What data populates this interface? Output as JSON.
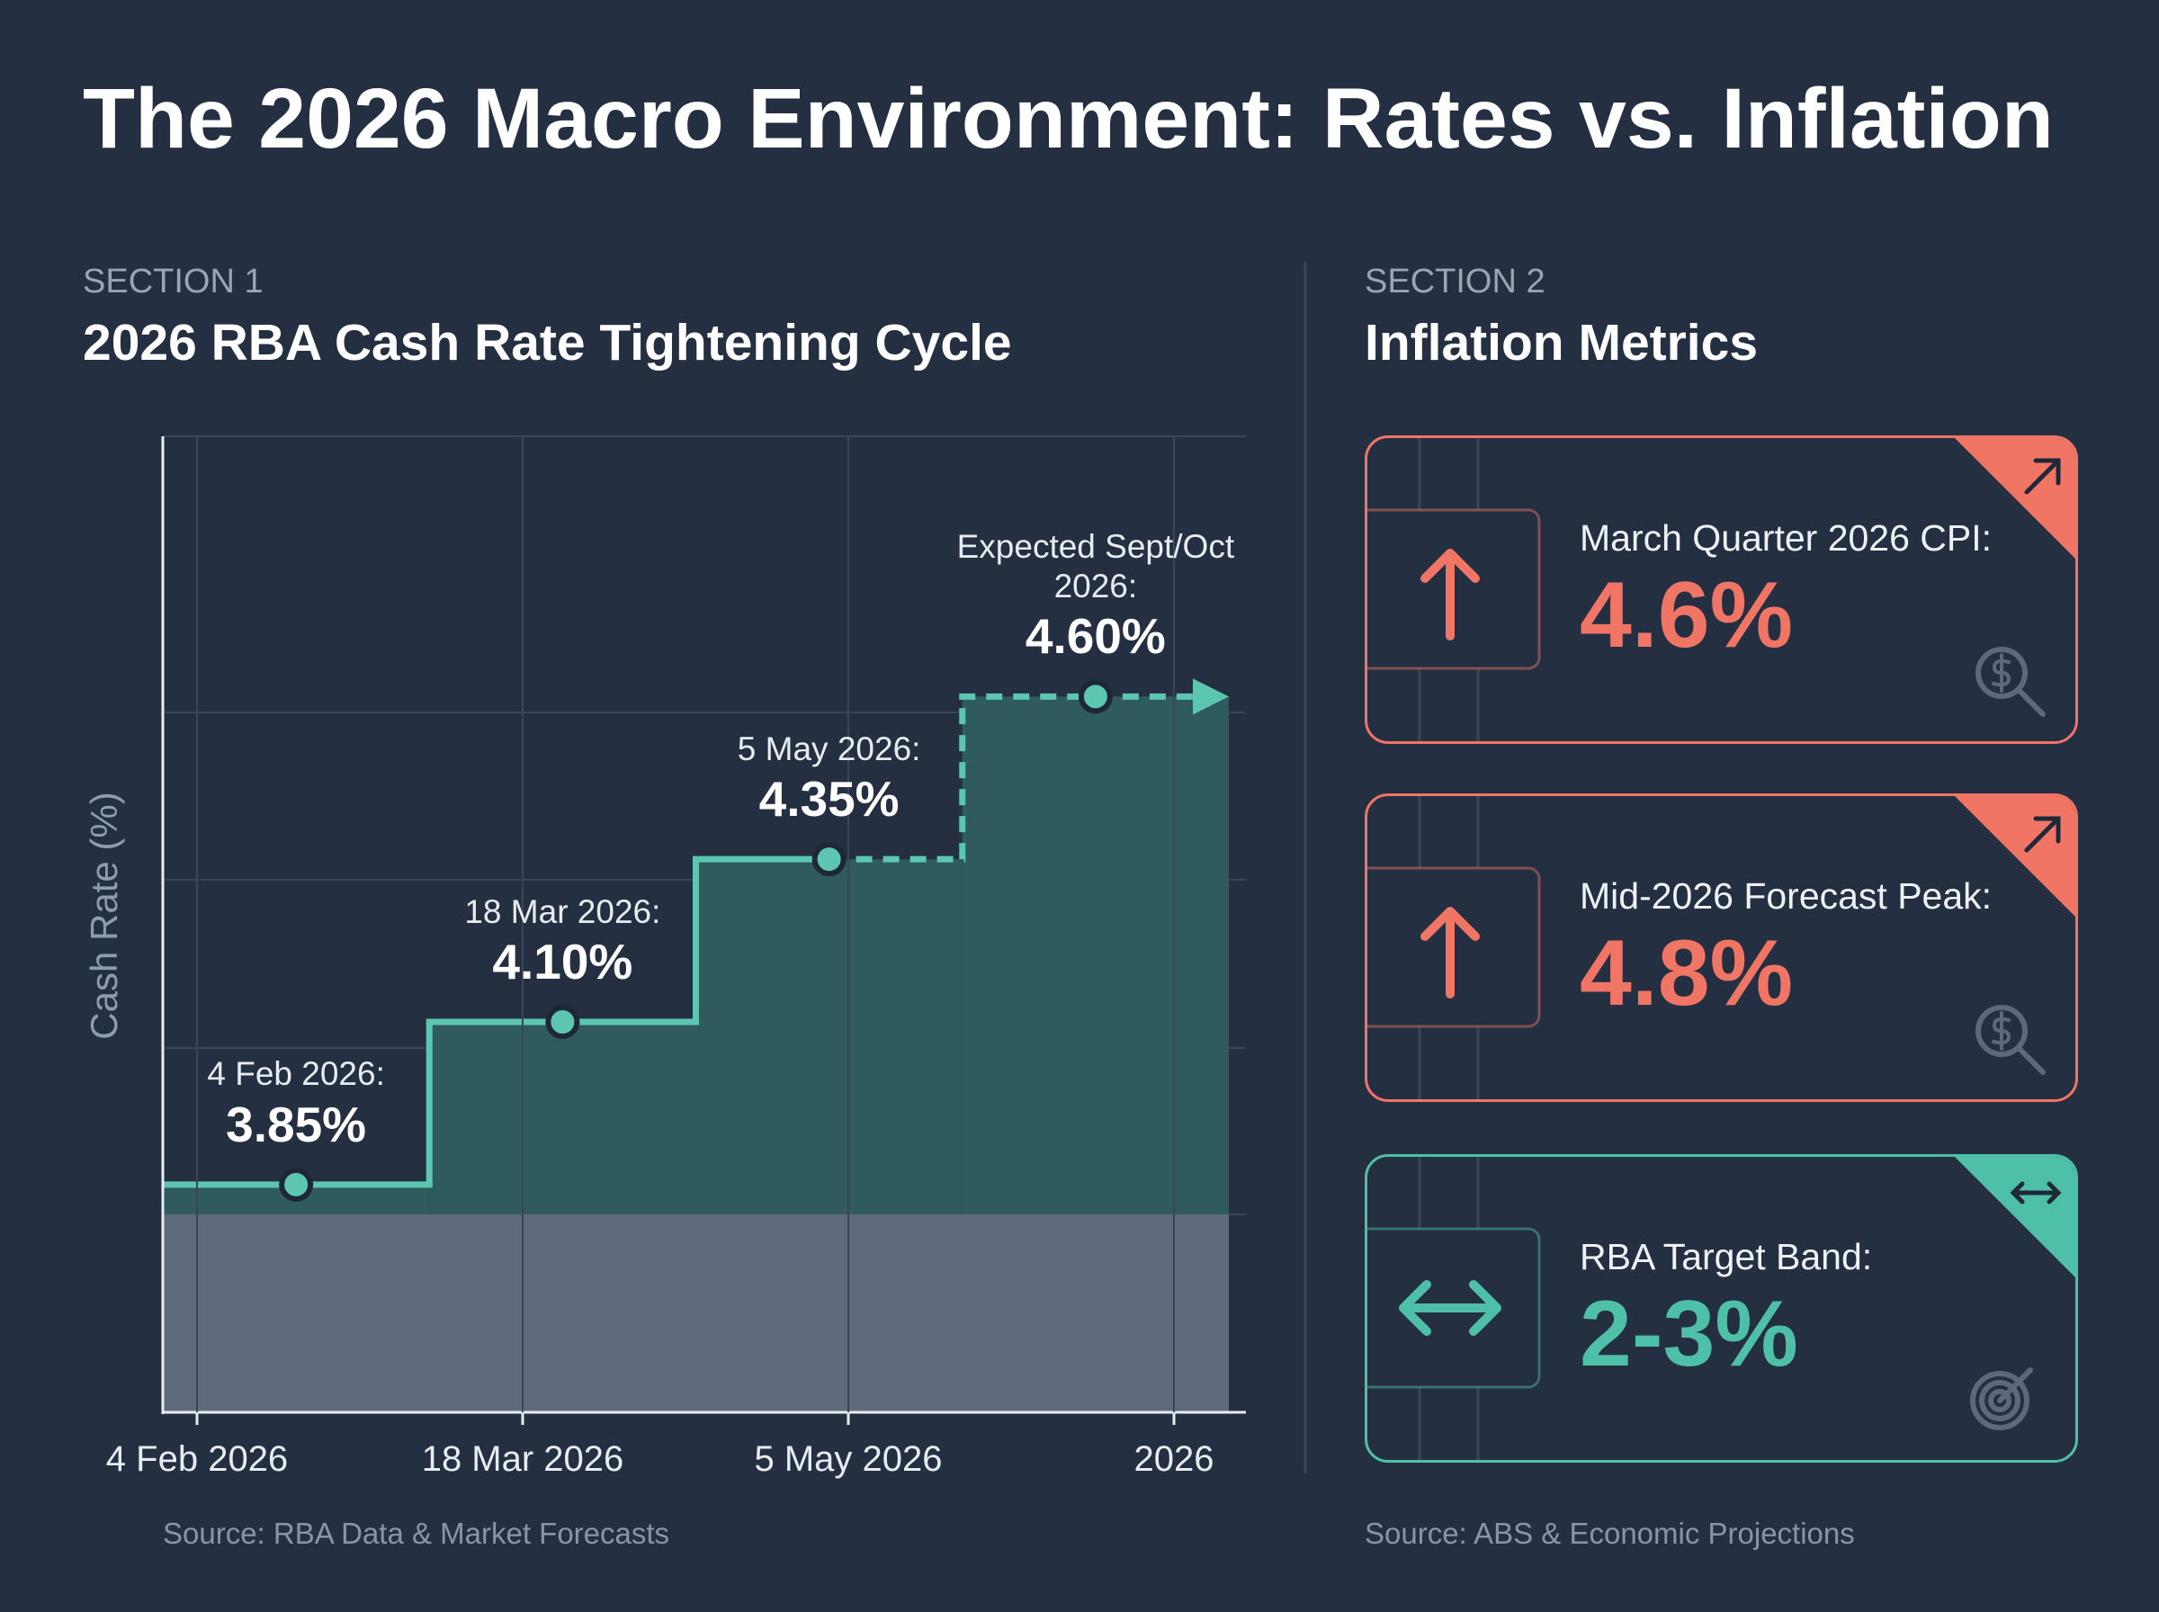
{
  "title": "The 2026 Macro Environment: Rates vs. Inflation",
  "chart_data": {
    "type": "step",
    "section_label": "SECTION 1",
    "heading": "2026 RBA Cash Rate Tightening Cycle",
    "y_label": "Cash Rate (%)",
    "categories": [
      "4 Feb 2026",
      "18 Mar 2026",
      "5 May 2026",
      "2026"
    ],
    "point_labels": [
      "4 Feb 2026:",
      "18 Mar 2026:",
      "5 May 2026:",
      "Expected Sept/Oct 2026:"
    ],
    "values": [
      3.85,
      4.1,
      4.35,
      4.6
    ],
    "value_labels": [
      "3.85%",
      "4.10%",
      "4.35%",
      "4.60%"
    ],
    "projected": [
      false,
      false,
      false,
      true
    ],
    "ylim": [
      3.5,
      5.0
    ],
    "color": "#5cc6b0",
    "source": "Source: RBA Data & Market Forecasts"
  },
  "section2": {
    "section_label": "SECTION 2",
    "heading": "Inflation Metrics",
    "cards": [
      {
        "label": "March Quarter 2026 CPI:",
        "value": "4.6%",
        "color": "#f07565",
        "trend": "up",
        "icon": "dollar"
      },
      {
        "label": "Mid-2026 Forecast Peak:",
        "value": "4.8%",
        "color": "#f07565",
        "trend": "up",
        "icon": "dollar"
      },
      {
        "label": "RBA Target Band:",
        "value": "2-3%",
        "color": "#4fc0a8",
        "trend": "flat",
        "icon": "target"
      }
    ],
    "source": "Source: ABS & Economic Projections"
  }
}
